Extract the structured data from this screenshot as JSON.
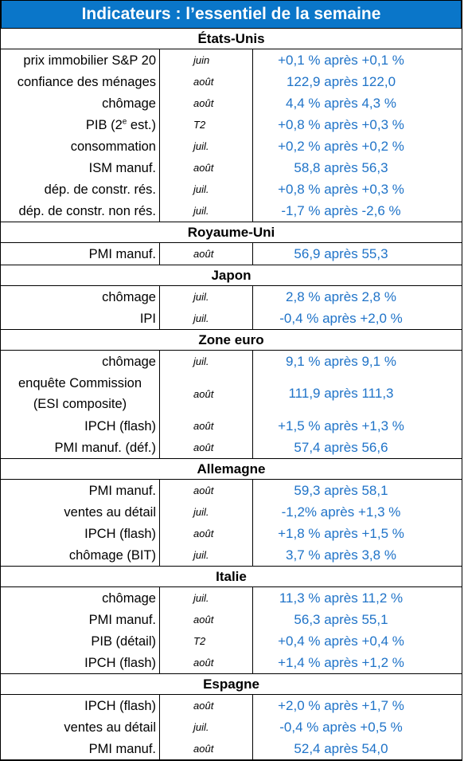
{
  "title": "Indicateurs : l’essentiel de la semaine",
  "sections": [
    {
      "name": "États-Unis",
      "rows": [
        {
          "indicator": "prix immobilier S&P 20",
          "period": "juin",
          "value": "+0,1 % après +0,1 %"
        },
        {
          "indicator": "confiance des ménages",
          "period": "août",
          "value": "122,9 après 122,0"
        },
        {
          "indicator": "chômage",
          "period": "août",
          "value": "4,4 % après 4,3 %"
        },
        {
          "indicator": "PIB (2",
          "indicator_sup": "e",
          "indicator_suffix": " est.)",
          "period": "T2",
          "value": "+0,8 % après +0,3 %"
        },
        {
          "indicator": "consommation",
          "period": "juil.",
          "value": "+0,2 % après +0,2 %"
        },
        {
          "indicator": "ISM manuf.",
          "period": "août",
          "value": "58,8 après 56,3"
        },
        {
          "indicator": "dép. de constr. rés.",
          "period": "juil.",
          "value": "+0,8 % après +0,3 %"
        },
        {
          "indicator": "dép. de constr. non rés.",
          "period": "juil.",
          "value": "-1,7 % après -2,6 %"
        }
      ]
    },
    {
      "name": "Royaume-Uni",
      "rows": [
        {
          "indicator": "PMI manuf.",
          "period": "août",
          "value": "56,9 après 55,3"
        }
      ]
    },
    {
      "name": "Japon",
      "rows": [
        {
          "indicator": "chômage",
          "period": "juil.",
          "value": "2,8 % après 2,8 %"
        },
        {
          "indicator": "IPI",
          "period": "juil.",
          "value": "-0,4 % après +2,0 %"
        }
      ]
    },
    {
      "name": "Zone euro",
      "rows": [
        {
          "indicator": "chômage",
          "period": "juil.",
          "value": "9,1 % après 9,1 %"
        },
        {
          "indicator": "enquête Commission (ESI composite)",
          "period": "août",
          "value": "111,9 après 111,3",
          "tall": true
        },
        {
          "indicator": "IPCH (flash)",
          "period": "août",
          "value": "+1,5 % après +1,3 %"
        },
        {
          "indicator": "PMI manuf. (déf.)",
          "period": "août",
          "value": "57,4 après 56,6"
        }
      ]
    },
    {
      "name": "Allemagne",
      "rows": [
        {
          "indicator": "PMI manuf.",
          "period": "août",
          "value": "59,3 après 58,1"
        },
        {
          "indicator": "ventes au détail",
          "period": "juil.",
          "value": "-1,2% après +1,3 %"
        },
        {
          "indicator": "IPCH (flash)",
          "period": "août",
          "value": "+1,8 % après +1,5 %"
        },
        {
          "indicator": "chômage (BIT)",
          "period": "juil.",
          "value": "3,7 % après 3,8 %"
        }
      ]
    },
    {
      "name": "Italie",
      "rows": [
        {
          "indicator": "chômage",
          "period": "juil.",
          "value": "11,3 % après 11,2 %"
        },
        {
          "indicator": "PMI manuf.",
          "period": "août",
          "value": "56,3 après 55,1"
        },
        {
          "indicator": "PIB (détail)",
          "period": "T2",
          "value": "+0,4 % après +0,4 %"
        },
        {
          "indicator": "IPCH (flash)",
          "period": "août",
          "value": "+1,4 % après +1,2 %"
        }
      ]
    },
    {
      "name": "Espagne",
      "rows": [
        {
          "indicator": "IPCH (flash)",
          "period": "août",
          "value": "+2,0 % après +1,7 %"
        },
        {
          "indicator": "ventes au détail",
          "period": "juil.",
          "value": "-0,4 % après +0,5 %"
        },
        {
          "indicator": "PMI manuf.",
          "period": "août",
          "value": "52,4 après 54,0"
        }
      ]
    }
  ]
}
